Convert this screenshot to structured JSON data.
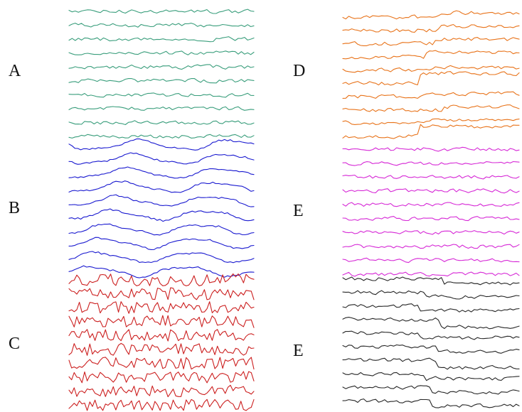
{
  "figure": {
    "panels": [
      {
        "id": "A",
        "label": "A",
        "color": "#3a9e7c",
        "style": "smooth-noise",
        "traces": 10,
        "column": "left",
        "band": "top"
      },
      {
        "id": "B",
        "label": "B",
        "color": "#1a1ad0",
        "style": "slow-wave",
        "traces": 10,
        "column": "left",
        "band": "middle"
      },
      {
        "id": "C",
        "label": "C",
        "color": "#cc1f1f",
        "style": "spiky-noise",
        "traces": 10,
        "column": "left",
        "band": "bottom"
      },
      {
        "id": "D",
        "label": "D",
        "color": "#e8731a",
        "style": "step-jump",
        "traces": 10,
        "column": "right",
        "band": "top"
      },
      {
        "id": "E1",
        "label": "E",
        "color": "#d628d6",
        "style": "smooth-noise",
        "traces": 10,
        "column": "right",
        "band": "middle"
      },
      {
        "id": "E2",
        "label": "E",
        "color": "#262626",
        "style": "step-drop",
        "traces": 10,
        "column": "right",
        "band": "bottom"
      }
    ]
  }
}
